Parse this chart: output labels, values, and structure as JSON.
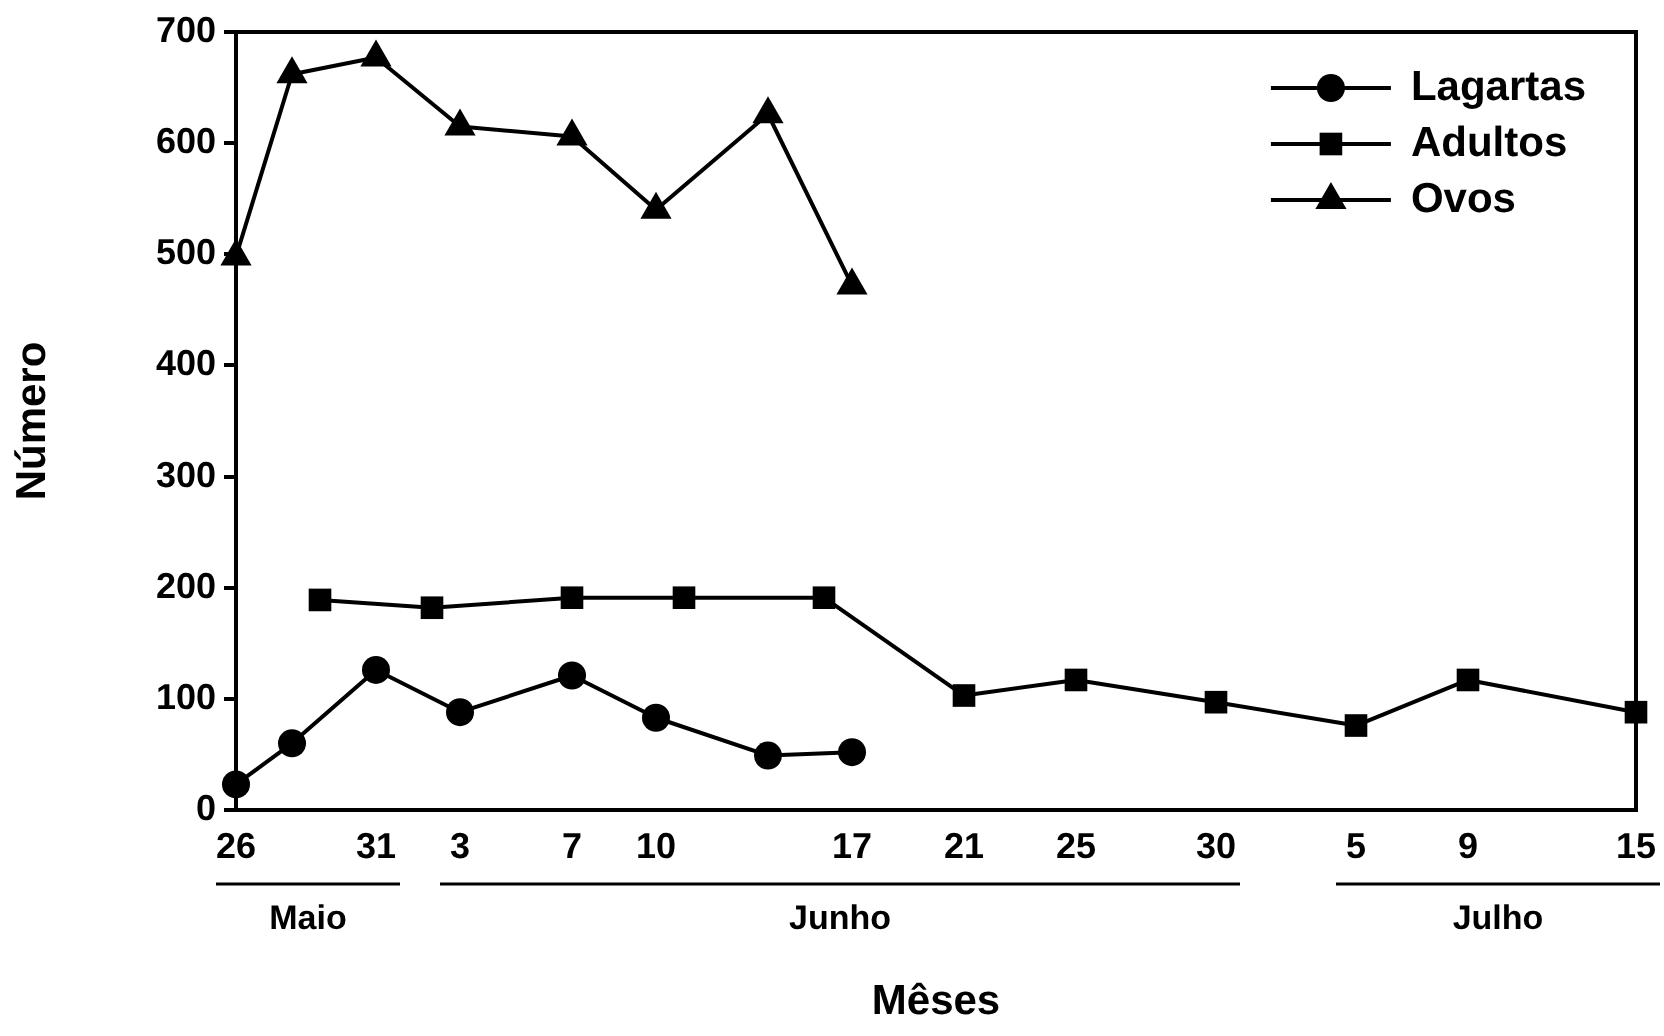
{
  "chart_data": {
    "type": "line",
    "xlabel": "Mêses",
    "ylabel": "Número",
    "xlim": [
      "--05-26",
      "--07-15"
    ],
    "xticks": [
      {
        "value": "--05-26",
        "label": "26"
      },
      {
        "value": "--05-31",
        "label": "31"
      },
      {
        "value": "--06-03",
        "label": "3"
      },
      {
        "value": "--06-07",
        "label": "7"
      },
      {
        "value": "--06-10",
        "label": "10"
      },
      {
        "value": "--06-17",
        "label": "17"
      },
      {
        "value": "--06-21",
        "label": "21"
      },
      {
        "value": "--06-25",
        "label": "25"
      },
      {
        "value": "--06-30",
        "label": "30"
      },
      {
        "value": "--07-05",
        "label": "5"
      },
      {
        "value": "--07-09",
        "label": "9"
      },
      {
        "value": "--07-15",
        "label": "15"
      }
    ],
    "ylim": [
      0,
      700
    ],
    "yticks": [
      0,
      100,
      200,
      300,
      400,
      500,
      600,
      700
    ],
    "grid": false,
    "legend": "top right",
    "line_style": "solid",
    "series": [
      {
        "name": "Lagartas",
        "color": "#000000",
        "marker": "circle",
        "x": [
          "--05-26",
          "--05-28",
          "--05-31",
          "--06-03",
          "--06-07",
          "--06-10",
          "--06-14",
          "--06-17"
        ],
        "values": [
          23,
          60,
          126,
          88,
          121,
          83,
          49,
          52
        ]
      },
      {
        "name": "Adultos",
        "color": "#000000",
        "marker": "square",
        "x": [
          "--05-29",
          "--06-02",
          "--06-07",
          "--06-11",
          "--06-16",
          "--06-21",
          "--06-25",
          "--06-30",
          "--07-05",
          "--07-09",
          "--07-15"
        ],
        "values": [
          189,
          182,
          191,
          191,
          191,
          103,
          117,
          97,
          76,
          117,
          88
        ]
      },
      {
        "name": "Ovos",
        "color": "#000000",
        "marker": "triangle",
        "x": [
          "--05-26",
          "--05-28",
          "--05-31",
          "--06-03",
          "--06-07",
          "--06-10",
          "--06-14",
          "--06-17"
        ],
        "values": [
          498,
          662,
          677,
          615,
          606,
          540,
          626,
          472
        ]
      }
    ],
    "annotations": [
      "Maio",
      "Junho",
      "Julho"
    ]
  }
}
